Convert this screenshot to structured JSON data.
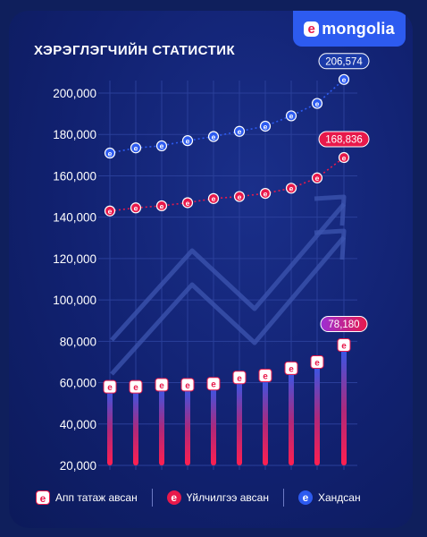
{
  "brand": {
    "logo_letter": "e",
    "logo_text": "mongolia"
  },
  "title": "ХЭРЭГЛЭГЧИЙН СТАТИСТИК",
  "colors": {
    "visits": "#2d5bf0",
    "services": "#e8194b",
    "app": "#e8194b",
    "app_top": "#2d5bf0"
  },
  "chart_data": {
    "type": "line",
    "title": "ХЭРЭГЛЭГЧИЙН СТАТИСТИК",
    "ylim": [
      20000,
      200000
    ],
    "y_ticks": [
      "20,000",
      "40,000",
      "60,000",
      "80,000",
      "100,000",
      "120,000",
      "140,000",
      "160,000",
      "180,000",
      "200,000"
    ],
    "y_tick_values": [
      20000,
      40000,
      60000,
      80000,
      100000,
      120000,
      140000,
      160000,
      180000,
      200000
    ],
    "series": [
      {
        "name": "Хандсан",
        "type": "line",
        "marker": "e",
        "values": [
          171000,
          173500,
          174500,
          177000,
          179000,
          181500,
          184000,
          189000,
          195000,
          206574
        ],
        "end_label": "206,574"
      },
      {
        "name": "Үйлчилгээ авсан",
        "type": "line",
        "marker": "e",
        "values": [
          143000,
          144500,
          145500,
          147000,
          149000,
          150000,
          151500,
          154000,
          159000,
          168836
        ],
        "end_label": "168,836"
      },
      {
        "name": "Апп татаж авсан",
        "type": "bar",
        "values": [
          58000,
          58000,
          59000,
          59000,
          59500,
          62500,
          63500,
          67000,
          70000,
          78180
        ],
        "end_label": "78,180"
      }
    ],
    "grid": true,
    "legend_position": "bottom"
  },
  "legend": [
    {
      "label": "Апп татаж авсан",
      "icon": "e",
      "style": "app"
    },
    {
      "label": "Үйлчилгээ авсан",
      "icon": "e",
      "style": "svc"
    },
    {
      "label": "Хандсан",
      "icon": "e",
      "style": "vis"
    }
  ]
}
